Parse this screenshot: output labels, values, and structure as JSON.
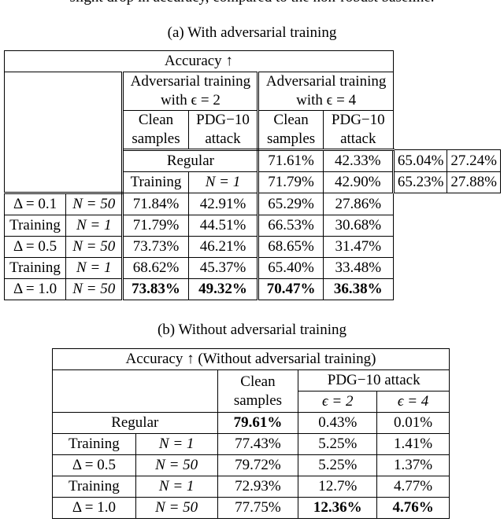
{
  "top_text": "slight drop in accuracy, compared to the non-robust baseline.",
  "caption_a": "(a) With adversarial training",
  "caption_b": "(b) Without adversarial training",
  "table_a": {
    "title": "Accuracy ↑",
    "group1": [
      "Adversarial training",
      "with ϵ = 2"
    ],
    "group2": [
      "Adversarial training",
      "with ϵ = 4"
    ],
    "col_clean": [
      "Clean",
      "samples"
    ],
    "col_pdg": [
      "PDG−10",
      "attack"
    ],
    "regular": {
      "label": "Regular",
      "values": [
        "71.61%",
        "42.33%",
        "65.04%",
        "27.24%"
      ]
    },
    "groups": [
      {
        "label1": "Training",
        "label2": "Δ = 0.1",
        "rows": [
          {
            "n": "N = 1",
            "values": [
              "71.79%",
              "42.90%",
              "65.23%",
              "27.88%"
            ]
          },
          {
            "n": "N = 50",
            "values": [
              "71.84%",
              "42.91%",
              "65.29%",
              "27.86%"
            ]
          }
        ]
      },
      {
        "label1": "Training",
        "label2": "Δ = 0.5",
        "rows": [
          {
            "n": "N = 1",
            "values": [
              "71.79%",
              "44.51%",
              "66.53%",
              "30.68%"
            ]
          },
          {
            "n": "N = 50",
            "values": [
              "73.73%",
              "46.21%",
              "68.65%",
              "31.47%"
            ]
          }
        ]
      },
      {
        "label1": "Training",
        "label2": "Δ = 1.0",
        "rows": [
          {
            "n": "N = 1",
            "values": [
              "68.62%",
              "45.37%",
              "65.40%",
              "33.48%"
            ]
          },
          {
            "n": "N = 50",
            "values": [
              "73.83%",
              "49.32%",
              "70.47%",
              "36.38%"
            ]
          }
        ]
      }
    ]
  },
  "table_b": {
    "title": "Accuracy ↑ (Without adversarial training)",
    "col_clean": [
      "Clean",
      "samples"
    ],
    "col_pdg": "PDG−10 attack",
    "eps2": "ϵ = 2",
    "eps4": "ϵ = 4",
    "regular": {
      "label": "Regular",
      "values": [
        "79.61%",
        "0.43%",
        "0.01%"
      ]
    },
    "groups": [
      {
        "label1": "Training",
        "label2": "Δ = 0.5",
        "rows": [
          {
            "n": "N = 1",
            "values": [
              "77.43%",
              "5.25%",
              "1.41%"
            ]
          },
          {
            "n": "N = 50",
            "values": [
              "79.72%",
              "5.25%",
              "1.37%"
            ]
          }
        ]
      },
      {
        "label1": "Training",
        "label2": "Δ = 1.0",
        "rows": [
          {
            "n": "N = 1",
            "values": [
              "72.93%",
              "12.7%",
              "4.77%"
            ]
          },
          {
            "n": "N = 50",
            "values": [
              "77.75%",
              "12.36%",
              "4.76%"
            ]
          }
        ]
      }
    ]
  }
}
